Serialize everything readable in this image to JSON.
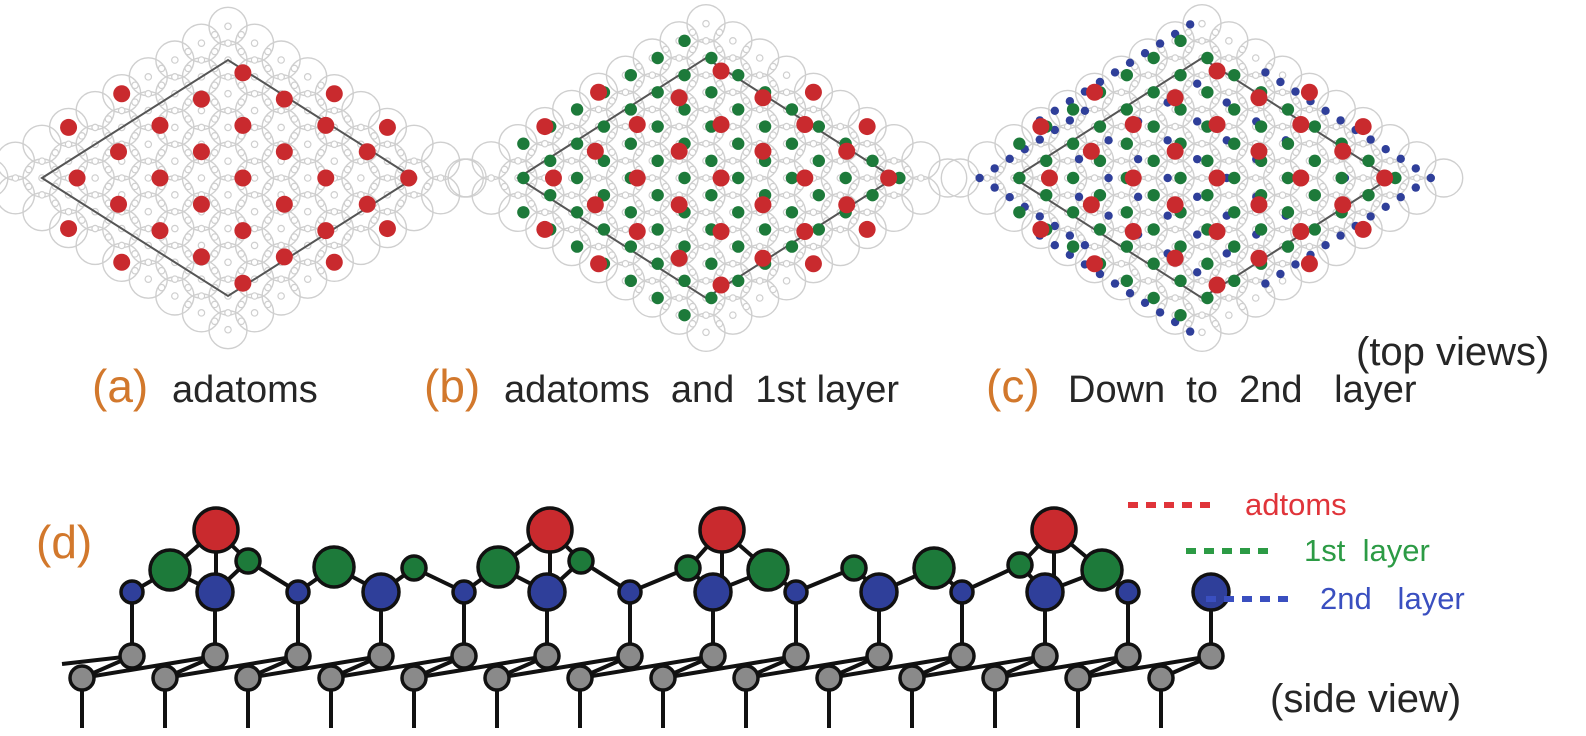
{
  "colors": {
    "adatom": "#c92a2e",
    "first_layer": "#1d7a3a",
    "second_layer": "#2f3f9a",
    "bulk": "#8a8a8a",
    "grid": "#cfcfcf",
    "label_letter": "#d2782c",
    "label_text": "#262626"
  },
  "top_views_label": "(top views)",
  "side_view_label": "(side view)",
  "panels": [
    {
      "letter": "(a)",
      "caption": "adatoms"
    },
    {
      "letter": "(b)",
      "caption": "adatoms  and  1st layer"
    },
    {
      "letter": "(c)",
      "caption": "Down  to  2nd   layer"
    }
  ],
  "side": {
    "letter": "(d)"
  },
  "legend": [
    {
      "label": "adtoms",
      "color": "#e0343a"
    },
    {
      "label": "1st  layer",
      "color": "#2c9b45"
    },
    {
      "label": "2nd   layer",
      "color": "#3a4fc0"
    }
  ]
}
